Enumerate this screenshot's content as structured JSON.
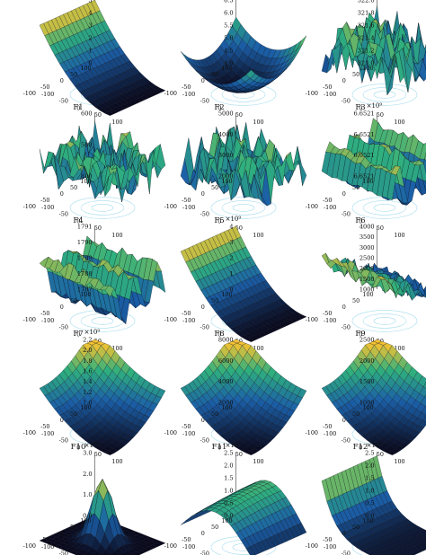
{
  "figure": {
    "panels": [
      {
        "label": "F1",
        "exponent": "×10¹⁰",
        "zticks": [
          "5",
          "4",
          "3",
          "2",
          "1",
          "0"
        ],
        "xticks": [
          "-100",
          "-50",
          "0",
          "50",
          "100"
        ],
        "yticks": [
          "100",
          "50",
          "0",
          "-50",
          "-100"
        ],
        "shape": "parabola",
        "view": "a"
      },
      {
        "label": "F2",
        "exponent": "×10¹⁰",
        "zticks": [
          "6.5",
          "6.0",
          "5.5",
          "5.0",
          "4.5",
          "4.0"
        ],
        "xticks": [
          "-100",
          "-50",
          "0",
          "50",
          "100"
        ],
        "yticks": [
          "100",
          "50",
          "0",
          "-50",
          "-100"
        ],
        "shape": "bowl",
        "view": "a"
      },
      {
        "label": "F3",
        "exponent": "",
        "zticks": [
          "322.0",
          "321.8",
          "321.6",
          "321.4",
          "321.2",
          "321.0"
        ],
        "xticks": [
          "-100",
          "-50",
          "0",
          "50",
          "100"
        ],
        "yticks": [
          "100",
          "50",
          "0",
          "-50",
          "-100"
        ],
        "shape": "noise",
        "view": "a"
      },
      {
        "label": "F4",
        "exponent": "",
        "zticks": [
          "600",
          "500",
          "400"
        ],
        "xticks": [
          "-100",
          "-50",
          "0",
          "50",
          "100"
        ],
        "yticks": [
          "100",
          "50",
          "0",
          "-50",
          "-100"
        ],
        "shape": "noise",
        "view": "a"
      },
      {
        "label": "F5",
        "exponent": "",
        "zticks": [
          "5000",
          "4000",
          "3000",
          "2000"
        ],
        "xticks": [
          "-100",
          "-50",
          "0",
          "50",
          "100"
        ],
        "yticks": [
          "100",
          "50",
          "0",
          "-50",
          "-100"
        ],
        "shape": "noise",
        "view": "a"
      },
      {
        "label": "F6",
        "exponent": "×10⁹",
        "zticks": [
          "6.6521",
          "6.6521",
          "6.6521",
          "6.6521"
        ],
        "xticks": [
          "-100",
          "-50",
          "0",
          "50",
          "100"
        ],
        "yticks": [
          "100",
          "50",
          "0",
          "-50",
          "-100"
        ],
        "shape": "ridges",
        "view": "a"
      },
      {
        "label": "F7",
        "exponent": "",
        "zticks": [
          "1791",
          "1790",
          "1789",
          "1788",
          "1787"
        ],
        "xticks": [
          "-100",
          "-50",
          "0",
          "50",
          "100"
        ],
        "yticks": [
          "100",
          "50",
          "0",
          "-50",
          "-100"
        ],
        "shape": "ridges",
        "view": "a"
      },
      {
        "label": "F8",
        "exponent": "×10⁹",
        "zticks": [
          "4",
          "3",
          "2",
          "1",
          "0"
        ],
        "xticks": [
          "-100",
          "-50",
          "0",
          "50",
          "100"
        ],
        "yticks": [
          "100",
          "50",
          "0",
          "-50",
          "-100"
        ],
        "shape": "parabola",
        "view": "a"
      },
      {
        "label": "F9",
        "exponent": "",
        "zticks": [
          "4000",
          "3500",
          "3000",
          "2500",
          "2000",
          "1500",
          "1000"
        ],
        "xticks": [
          "-100",
          "-50",
          "0",
          "50",
          "100"
        ],
        "yticks": [
          "100",
          "50",
          "0",
          "-50",
          "-100"
        ],
        "shape": "noiseramp",
        "view": "b"
      },
      {
        "label": "F10",
        "exponent": "×10⁹",
        "zticks": [
          "2.2",
          "2.0",
          "1.8",
          "1.6",
          "1.4",
          "1.2",
          "1.0"
        ],
        "xticks": [
          "-100",
          "-50",
          "0",
          "50",
          "100"
        ],
        "yticks": [
          "100",
          "50",
          "0",
          "-50",
          "-100"
        ],
        "shape": "corner",
        "view": "a"
      },
      {
        "label": "F11",
        "exponent": "",
        "zticks": [
          "8000",
          "6000",
          "4000",
          "2000"
        ],
        "xticks": [
          "-100",
          "-50",
          "0",
          "50",
          "100"
        ],
        "yticks": [
          "100",
          "50",
          "0",
          "-50",
          "-100"
        ],
        "shape": "corner",
        "view": "a"
      },
      {
        "label": "F12",
        "exponent": "",
        "zticks": [
          "2500",
          "2000",
          "1500",
          "1000"
        ],
        "xticks": [
          "-100",
          "-50",
          "0",
          "50",
          "100"
        ],
        "yticks": [
          "100",
          "50",
          "0",
          "-50",
          "-100"
        ],
        "shape": "corner",
        "view": "a"
      },
      {
        "label": "F13",
        "exponent": "×10⁶",
        "zticks": [
          "3.0",
          "2.0",
          "1.0",
          "0.0"
        ],
        "xticks": [
          "-100",
          "-50",
          "0",
          "50",
          "100"
        ],
        "yticks": [
          "100",
          "50",
          "0",
          "-50",
          "-100"
        ],
        "shape": "gauss",
        "view": "a"
      },
      {
        "label": "F14",
        "exponent": "×10⁵",
        "zticks": [
          "2.5",
          "2.0",
          "1.5",
          "1.0",
          "0.5",
          "0.0"
        ],
        "xticks": [
          "-100",
          "-50",
          "0",
          "50",
          "100"
        ],
        "yticks": [
          "100",
          "50",
          "0",
          "-50",
          "-100"
        ],
        "shape": "wave",
        "view": "a"
      },
      {
        "label": "F15",
        "exponent": "×10⁷",
        "zticks": [
          "2.5",
          "2.0",
          "1.5",
          "1.0",
          "0.5",
          "0.0"
        ],
        "xticks": [
          "-100",
          "-50",
          "0",
          "50",
          "100"
        ],
        "yticks": [
          "100",
          "50",
          "0",
          "-50",
          "-100"
        ],
        "shape": "edge",
        "view": "a"
      }
    ]
  },
  "colors": {
    "low": "#0a0a1e",
    "mid": "#1b5fa8",
    "high": "#2fb07e",
    "peak": "#f4c232",
    "contour": "#8fd3e8",
    "ink": "#111111"
  }
}
